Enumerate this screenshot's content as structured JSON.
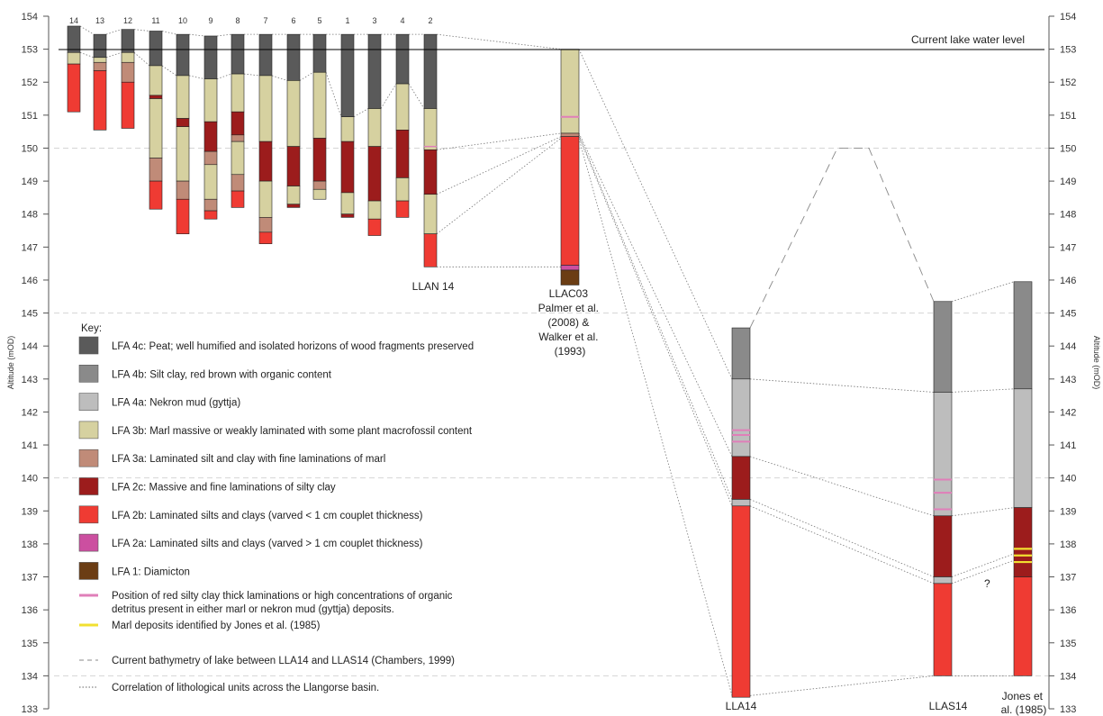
{
  "axis": {
    "ylabel": "Altitude (mOD)",
    "range": [
      133,
      154
    ],
    "ticks": [
      "133",
      "134",
      "135",
      "136",
      "137",
      "138",
      "139",
      "140",
      "141",
      "142",
      "143",
      "144",
      "145",
      "146",
      "147",
      "148",
      "149",
      "150",
      "151",
      "152",
      "153",
      "154"
    ]
  },
  "water_level": {
    "label": "Current lake water level",
    "altitude": 153
  },
  "colors": {
    "LFA4c": "#5a5a5a",
    "LFA4b": "#8a8a8a",
    "LFA4a": "#bdbdbd",
    "LFA3b": "#d6d1a0",
    "LFA3a": "#c08b78",
    "LFA2c": "#9c1c1c",
    "LFA2b": "#ef3b33",
    "LFA2a": "#cc4fa0",
    "LFA1": "#6b3d14",
    "laminations": "#e07fb9",
    "marl_jones": "#f2e030"
  },
  "key": {
    "title": "Key:",
    "items": [
      {
        "swatch": "LFA4c",
        "text": "LFA 4c: Peat; well humified and isolated horizons of wood fragments preserved"
      },
      {
        "swatch": "LFA4b",
        "text": "LFA 4b: Silt clay, red brown with organic content"
      },
      {
        "swatch": "LFA4a",
        "text": "LFA 4a: Nekron mud (gyttja)"
      },
      {
        "swatch": "LFA3b",
        "text": "LFA 3b: Marl massive or weakly laminated with some plant macrofossil content"
      },
      {
        "swatch": "LFA3a",
        "text": "LFA 3a: Laminated silt and clay with fine laminations of marl"
      },
      {
        "swatch": "LFA2c",
        "text": "LFA 2c: Massive and fine laminations of silty clay"
      },
      {
        "swatch": "LFA2b",
        "text": "LFA 2b: Laminated silts and clays (varved < 1 cm couplet thickness)"
      },
      {
        "swatch": "LFA2a",
        "text": "LFA 2a: Laminated silts and clays (varved > 1 cm couplet thickness)"
      },
      {
        "swatch": "LFA1",
        "text": "LFA 1:   Diamicton"
      }
    ],
    "line_items": [
      {
        "kind": "laminations",
        "text1": "Position of red silty clay thick laminations or high concentrations of organic",
        "text2": "detritus present in either marl or nekron mud (gyttja) deposits."
      },
      {
        "kind": "marl",
        "text1": "Marl deposits identified by Jones et al. (1985)",
        "text2": ""
      },
      {
        "kind": "bathymetry",
        "text1": "Current bathymetry of lake between LLA14 and LLAS14 (Chambers, 1999)",
        "text2": ""
      },
      {
        "kind": "correlation",
        "text1": "Correlation of lithological units across the Llangorse basin.",
        "text2": ""
      }
    ]
  },
  "llan_columns": {
    "group_label": "LLAN 14",
    "cores": [
      {
        "name": "14",
        "units": [
          [
            "LFA4c",
            153.7,
            152.9
          ],
          [
            "LFA3b",
            152.9,
            152.55
          ],
          [
            "LFA2b",
            152.55,
            151.1
          ]
        ]
      },
      {
        "name": "13",
        "units": [
          [
            "LFA4c",
            153.45,
            152.75
          ],
          [
            "LFA3b",
            152.75,
            152.6
          ],
          [
            "LFA3a",
            152.6,
            152.35
          ],
          [
            "LFA2b",
            152.35,
            150.55
          ]
        ]
      },
      {
        "name": "12",
        "units": [
          [
            "LFA4c",
            153.6,
            152.9
          ],
          [
            "LFA3b",
            152.9,
            152.6
          ],
          [
            "LFA3a",
            152.6,
            152.0
          ],
          [
            "LFA2b",
            152.0,
            150.6
          ]
        ]
      },
      {
        "name": "11",
        "units": [
          [
            "LFA4c",
            153.55,
            152.5
          ],
          [
            "LFA3b",
            152.5,
            151.6
          ],
          [
            "LFA2c",
            151.6,
            151.5
          ],
          [
            "LFA3b",
            151.5,
            149.7
          ],
          [
            "LFA3a",
            149.7,
            149.0
          ],
          [
            "LFA2b",
            149.0,
            148.15
          ]
        ]
      },
      {
        "name": "10",
        "units": [
          [
            "LFA4c",
            153.45,
            152.2
          ],
          [
            "LFA3b",
            152.2,
            150.9
          ],
          [
            "LFA2c",
            150.9,
            150.65
          ],
          [
            "LFA3b",
            150.65,
            149.0
          ],
          [
            "LFA3a",
            149.0,
            148.45
          ],
          [
            "LFA2b",
            148.45,
            147.4
          ]
        ]
      },
      {
        "name": "9",
        "units": [
          [
            "LFA4c",
            153.4,
            152.1
          ],
          [
            "LFA3b",
            152.1,
            150.8
          ],
          [
            "LFA2c",
            150.8,
            149.9
          ],
          [
            "LFA3a",
            149.9,
            149.5
          ],
          [
            "LFA3b",
            149.5,
            148.45
          ],
          [
            "LFA3a",
            148.45,
            148.1
          ],
          [
            "LFA2b",
            148.1,
            147.85
          ]
        ]
      },
      {
        "name": "8",
        "units": [
          [
            "LFA4c",
            153.45,
            152.25
          ],
          [
            "LFA3b",
            152.25,
            151.1
          ],
          [
            "LFA2c",
            151.1,
            150.4
          ],
          [
            "LFA3a",
            150.4,
            150.2
          ],
          [
            "LFA3b",
            150.2,
            149.2
          ],
          [
            "LFA3a",
            149.2,
            148.7
          ],
          [
            "LFA2b",
            148.7,
            148.2
          ]
        ]
      },
      {
        "name": "7",
        "units": [
          [
            "LFA4c",
            153.45,
            152.2
          ],
          [
            "LFA3b",
            152.2,
            150.2
          ],
          [
            "LFA2c",
            150.2,
            149.0
          ],
          [
            "LFA3b",
            149.0,
            147.9
          ],
          [
            "LFA3a",
            147.9,
            147.45
          ],
          [
            "LFA2b",
            147.45,
            147.1
          ]
        ]
      },
      {
        "name": "6",
        "units": [
          [
            "LFA4c",
            153.45,
            152.05
          ],
          [
            "LFA3b",
            152.05,
            150.05
          ],
          [
            "LFA2c",
            150.05,
            148.85
          ],
          [
            "LFA3b",
            148.85,
            148.3
          ],
          [
            "LFA2c",
            148.3,
            148.2
          ]
        ]
      },
      {
        "name": "5",
        "units": [
          [
            "LFA4c",
            153.45,
            152.3
          ],
          [
            "LFA3b",
            152.3,
            150.3
          ],
          [
            "LFA2c",
            150.3,
            149.0
          ],
          [
            "LFA3a",
            149.0,
            148.75
          ],
          [
            "LFA3b",
            148.75,
            148.45
          ]
        ]
      },
      {
        "name": "1",
        "units": [
          [
            "LFA4c",
            153.45,
            150.95
          ],
          [
            "LFA3b",
            150.95,
            150.2
          ],
          [
            "LFA2c",
            150.2,
            148.65
          ],
          [
            "LFA3b",
            148.65,
            148.0
          ],
          [
            "LFA2c",
            148.0,
            147.9
          ]
        ]
      },
      {
        "name": "3",
        "units": [
          [
            "LFA4c",
            153.45,
            151.2
          ],
          [
            "LFA3b",
            151.2,
            150.05
          ],
          [
            "LFA2c",
            150.05,
            148.4
          ],
          [
            "LFA3b",
            148.4,
            147.85
          ],
          [
            "LFA2b",
            147.85,
            147.35
          ]
        ]
      },
      {
        "name": "4",
        "units": [
          [
            "LFA4c",
            153.45,
            151.95
          ],
          [
            "LFA3b",
            151.95,
            150.55
          ],
          [
            "LFA2c",
            150.55,
            149.1
          ],
          [
            "LFA3b",
            149.1,
            148.4
          ],
          [
            "LFA2b",
            148.4,
            147.9
          ]
        ]
      },
      {
        "name": "2",
        "units": [
          [
            "LFA4c",
            153.45,
            151.2
          ],
          [
            "LFA3b",
            151.2,
            149.95
          ],
          [
            "LFA2c",
            149.95,
            148.6
          ],
          [
            "LFA3b",
            148.6,
            147.4
          ],
          [
            "LFA2b",
            147.4,
            146.4
          ]
        ]
      }
    ]
  },
  "llac03": {
    "label_lines": [
      "LLAC03",
      "Palmer et al.",
      "(2008) &",
      "Walker et al.",
      "(1993)"
    ],
    "units": [
      [
        "LFA3b",
        153.0,
        150.45
      ],
      [
        "LFA3a",
        150.45,
        150.35
      ],
      [
        "LFA2b",
        150.35,
        146.45
      ],
      [
        "LFA2a",
        146.45,
        146.3
      ],
      [
        "LFA1",
        146.3,
        145.85
      ]
    ],
    "laminations": [
      150.95
    ]
  },
  "lla14": {
    "label": "LLA14",
    "units": [
      [
        "LFA4b",
        144.55,
        143.0
      ],
      [
        "LFA4a",
        143.0,
        140.65
      ],
      [
        "LFA2c",
        140.65,
        139.35
      ],
      [
        "LFA4a",
        139.35,
        139.15
      ],
      [
        "LFA2b",
        139.15,
        133.35
      ]
    ],
    "laminations": [
      141.45,
      141.3,
      141.1
    ]
  },
  "llas14": {
    "label": "LLAS14",
    "units": [
      [
        "LFA4b",
        145.35,
        142.6
      ],
      [
        "LFA4a",
        142.6,
        138.85
      ],
      [
        "LFA2c",
        138.85,
        137.0
      ],
      [
        "LFA4a",
        137.0,
        136.8
      ],
      [
        "LFA2b",
        136.8,
        134.0
      ]
    ],
    "laminations": [
      139.95,
      139.55,
      139.05
    ]
  },
  "jones": {
    "label_lines": [
      "Jones et",
      "al. (1985)"
    ],
    "units": [
      [
        "LFA4b",
        145.95,
        142.7
      ],
      [
        "LFA4a",
        142.7,
        139.1
      ],
      [
        "LFA2c",
        139.1,
        137.0
      ],
      [
        "LFA2b",
        137.0,
        134.0
      ]
    ],
    "marl": [
      137.85,
      137.65,
      137.45
    ]
  },
  "question_mark": "?"
}
